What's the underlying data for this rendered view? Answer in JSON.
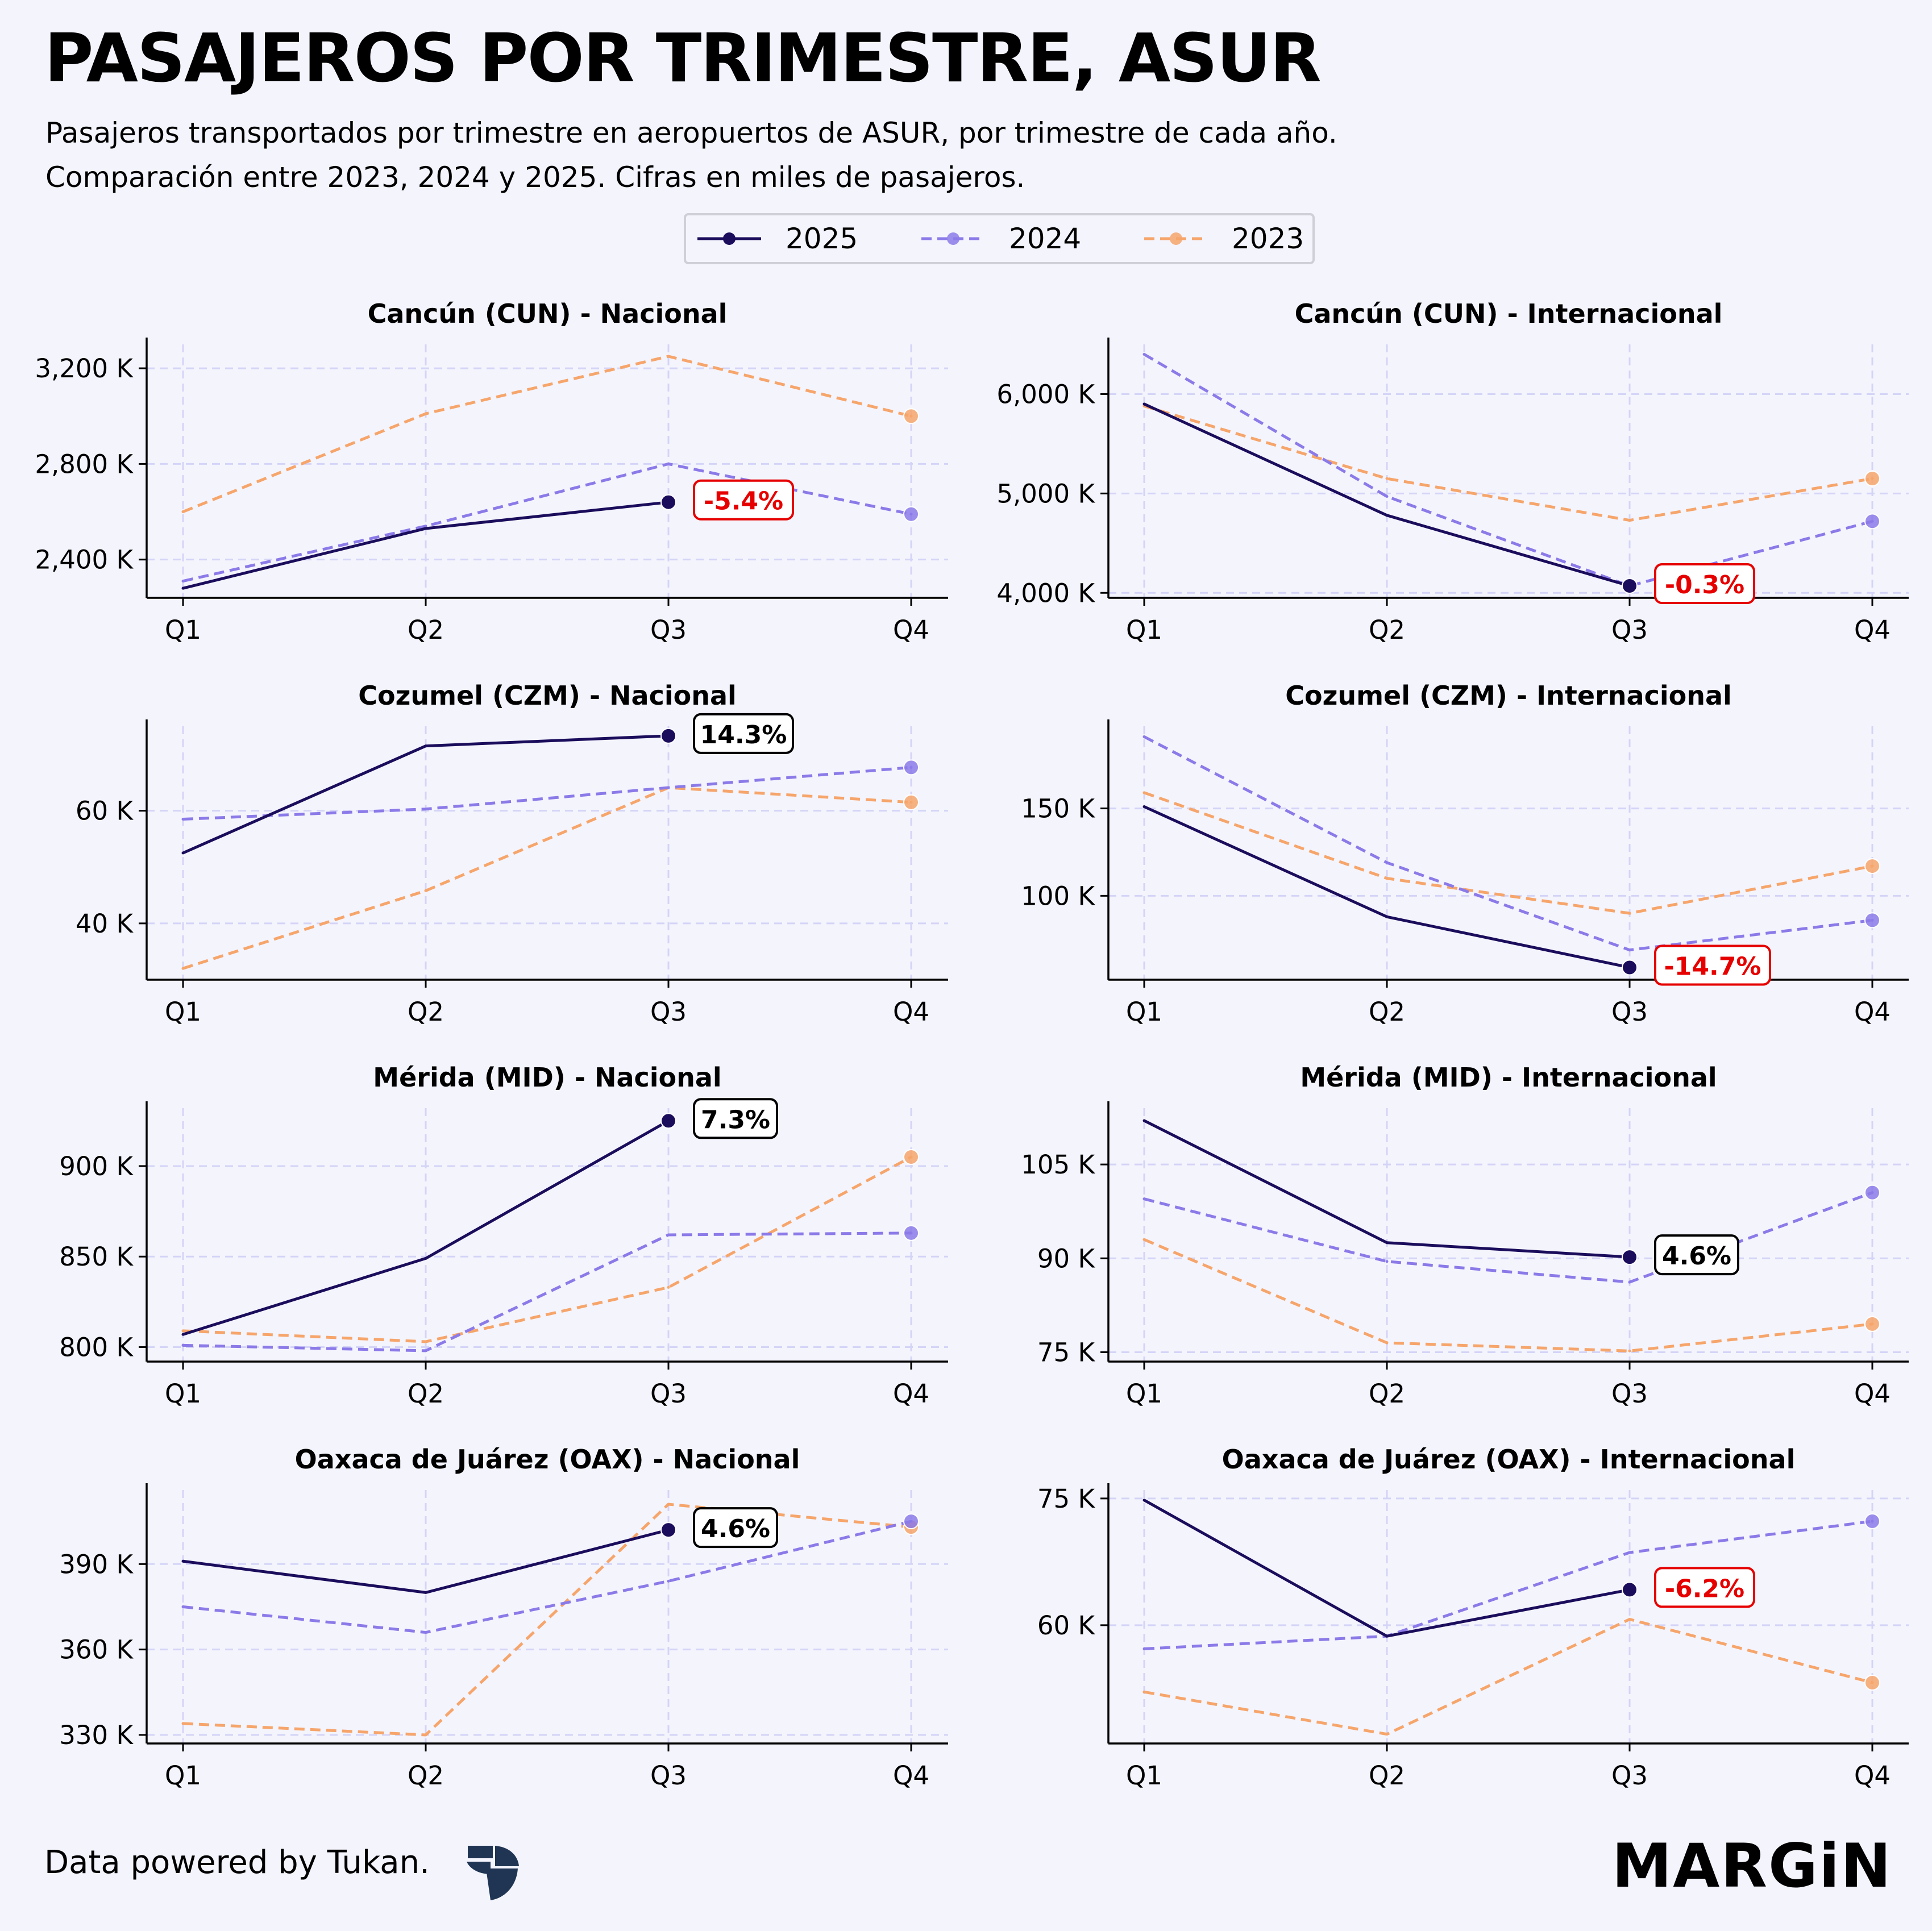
{
  "title": "PASAJEROS POR TRIMESTRE, ASUR",
  "subtitle_line1": "Pasajeros transportados por trimestre en aeropuertos de ASUR, por trimestre de cada año.",
  "subtitle_line2": "Comparación entre 2023, 2024 y 2025. Cifras en miles de pasajeros.",
  "legend": [
    {
      "name": "2025",
      "color": "#1b0d5c",
      "dash": "solid"
    },
    {
      "name": "2024",
      "color": "#8b7ae8",
      "dash": "dashed"
    },
    {
      "name": "2023",
      "color": "#f6a56b",
      "dash": "dashed"
    }
  ],
  "colors": {
    "y2025": "#1b0d5c",
    "y2024": "#8b7ae8",
    "y2023": "#f6a56b",
    "negative": "#e60000",
    "positive": "#000000",
    "grid": "#d4d4f7"
  },
  "chart_data": [
    {
      "type": "line",
      "title": "Cancún (CUN) - Nacional",
      "categories": [
        "Q1",
        "Q2",
        "Q3",
        "Q4"
      ],
      "ylim": [
        2240,
        3300
      ],
      "yticks": [
        2400,
        2800,
        3200
      ],
      "ytick_labels": [
        "2,400 K",
        "2,800 K",
        "3,200 K"
      ],
      "series": [
        {
          "name": "2025",
          "values": [
            2280,
            2530,
            2640,
            null
          ]
        },
        {
          "name": "2024",
          "values": [
            2310,
            2540,
            2800,
            2590
          ]
        },
        {
          "name": "2023",
          "values": [
            2600,
            3010,
            3250,
            3000
          ]
        }
      ],
      "annotation": {
        "text": "-5.4%",
        "sign": "negative"
      }
    },
    {
      "type": "line",
      "title": "Cancún (CUN) - Internacional",
      "categories": [
        "Q1",
        "Q2",
        "Q3",
        "Q4"
      ],
      "ylim": [
        3950,
        6500
      ],
      "yticks": [
        4000,
        5000,
        6000
      ],
      "ytick_labels": [
        "4,000 K",
        "5,000 K",
        "6,000 K"
      ],
      "series": [
        {
          "name": "2025",
          "values": [
            5900,
            4780,
            4070,
            null
          ]
        },
        {
          "name": "2024",
          "values": [
            6400,
            4970,
            4070,
            4720
          ]
        },
        {
          "name": "2023",
          "values": [
            5880,
            5150,
            4730,
            5150
          ]
        }
      ],
      "annotation": {
        "text": "-0.3%",
        "sign": "negative"
      }
    },
    {
      "type": "line",
      "title": "Cozumel (CZM) - Nacional",
      "categories": [
        "Q1",
        "Q2",
        "Q3",
        "Q4"
      ],
      "ylim": [
        30,
        75
      ],
      "yticks": [
        40,
        60
      ],
      "ytick_labels": [
        "40 K",
        "60 K"
      ],
      "series": [
        {
          "name": "2025",
          "values": [
            52.5,
            71.5,
            73.3,
            null
          ]
        },
        {
          "name": "2024",
          "values": [
            58.5,
            60.3,
            64.1,
            67.7
          ]
        },
        {
          "name": "2023",
          "values": [
            32,
            45.8,
            64.1,
            61.5
          ]
        }
      ],
      "annotation": {
        "text": "14.3%",
        "sign": "positive"
      }
    },
    {
      "type": "line",
      "title": "Cozumel (CZM) - Internacional",
      "categories": [
        "Q1",
        "Q2",
        "Q3",
        "Q4"
      ],
      "ylim": [
        52,
        197
      ],
      "yticks": [
        100,
        150
      ],
      "ytick_labels": [
        "100 K",
        "150 K"
      ],
      "series": [
        {
          "name": "2025",
          "values": [
            151,
            88,
            59,
            null
          ]
        },
        {
          "name": "2024",
          "values": [
            191,
            119,
            69,
            86
          ]
        },
        {
          "name": "2023",
          "values": [
            159,
            110,
            90,
            117
          ]
        }
      ],
      "annotation": {
        "text": "-14.7%",
        "sign": "negative"
      }
    },
    {
      "type": "line",
      "title": "Mérida (MID) - Nacional",
      "categories": [
        "Q1",
        "Q2",
        "Q3",
        "Q4"
      ],
      "ylim": [
        792,
        932
      ],
      "yticks": [
        800,
        850,
        900
      ],
      "ytick_labels": [
        "800 K",
        "850 K",
        "900 K"
      ],
      "series": [
        {
          "name": "2025",
          "values": [
            807,
            849,
            925,
            null
          ]
        },
        {
          "name": "2024",
          "values": [
            801,
            798,
            862,
            863
          ]
        },
        {
          "name": "2023",
          "values": [
            809,
            803,
            833,
            905
          ]
        }
      ],
      "annotation": {
        "text": "7.3%",
        "sign": "positive"
      }
    },
    {
      "type": "line",
      "title": "Mérida (MID) - Internacional",
      "categories": [
        "Q1",
        "Q2",
        "Q3",
        "Q4"
      ],
      "ylim": [
        73.5,
        114
      ],
      "yticks": [
        75,
        90,
        105
      ],
      "ytick_labels": [
        "75 K",
        "90 K",
        "105 K"
      ],
      "series": [
        {
          "name": "2025",
          "values": [
            112,
            92.5,
            90.2,
            null
          ]
        },
        {
          "name": "2024",
          "values": [
            99.5,
            89.5,
            86.2,
            100.5
          ]
        },
        {
          "name": "2023",
          "values": [
            93,
            76.5,
            75.2,
            79.5
          ]
        }
      ],
      "annotation": {
        "text": "4.6%",
        "sign": "positive"
      }
    },
    {
      "type": "line",
      "title": "Oaxaca de Juárez (OAX) - Nacional",
      "categories": [
        "Q1",
        "Q2",
        "Q3",
        "Q4"
      ],
      "ylim": [
        327,
        416
      ],
      "yticks": [
        330,
        360,
        390
      ],
      "ytick_labels": [
        "330 K",
        "360 K",
        "390 K"
      ],
      "series": [
        {
          "name": "2025",
          "values": [
            391,
            380,
            402,
            null
          ]
        },
        {
          "name": "2024",
          "values": [
            375,
            366,
            384,
            405
          ]
        },
        {
          "name": "2023",
          "values": [
            334,
            330,
            411,
            403
          ]
        }
      ],
      "annotation": {
        "text": "4.6%",
        "sign": "positive"
      }
    },
    {
      "type": "line",
      "title": "Oaxaca de Juárez (OAX) - Internacional",
      "categories": [
        "Q1",
        "Q2",
        "Q3",
        "Q4"
      ],
      "ylim": [
        46,
        76
      ],
      "yticks": [
        60,
        75
      ],
      "ytick_labels": [
        "60 K",
        "75 K"
      ],
      "series": [
        {
          "name": "2025",
          "values": [
            74.8,
            58.7,
            64.2,
            null
          ]
        },
        {
          "name": "2024",
          "values": [
            57.2,
            58.7,
            68.6,
            72.3
          ]
        },
        {
          "name": "2023",
          "values": [
            52.1,
            47.1,
            60.7,
            53.2
          ]
        }
      ],
      "annotation": {
        "text": "-6.2%",
        "sign": "negative"
      }
    }
  ],
  "footer": {
    "text": "Data powered by Tukan.",
    "brand": "MARGiN"
  }
}
